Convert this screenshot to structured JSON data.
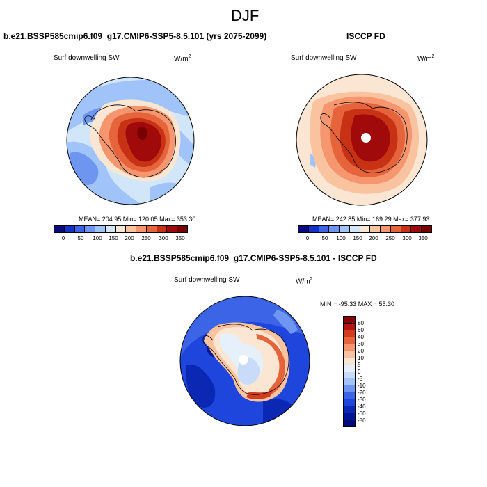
{
  "figure": {
    "title": "DJF"
  },
  "panels": [
    {
      "case_title": "b.e21.BSSP585cmip6.f09_g17.CMIP6-SSP5-8.5.101 (yrs 2075-2099)",
      "variable": "Surf downwelling SW",
      "units_base": "W/m",
      "units_exp": "2",
      "stats": "MEAN= 204.95  Min= 120.05  Max= 353.30",
      "colorbar_ticks": [
        "0",
        "50",
        "100",
        "150",
        "200",
        "250",
        "300",
        "350"
      ]
    },
    {
      "case_title": "ISCCP FD",
      "variable": "Surf downwelling SW",
      "units_base": "W/m",
      "units_exp": "2",
      "stats": "MEAN= 242.85  Min= 169.29  Max= 377.93",
      "colorbar_ticks": [
        "0",
        "50",
        "100",
        "150",
        "200",
        "250",
        "300",
        "350"
      ]
    }
  ],
  "diff_panel": {
    "case_title": "b.e21.BSSP585cmip6.f09_g17.CMIP6-SSP5-8.5.101 - ISCCP FD",
    "variable": "Surf downwelling SW",
    "units_base": "W/m",
    "units_exp": "2",
    "stats": "MIN = -95.33 MAX =  55.30",
    "colorbar_ticks": [
      "80",
      "60",
      "40",
      "30",
      "20",
      "10",
      "5",
      "0",
      "-5",
      "-10",
      "-20",
      "-30",
      "-40",
      "-60",
      "-80"
    ]
  },
  "colors": {
    "abs_scale": [
      "#0a0a78",
      "#1432c8",
      "#3c64e6",
      "#6e96f0",
      "#a0c3fa",
      "#d2e6fa",
      "#fae6d2",
      "#fac3a0",
      "#f5966e",
      "#e6643c",
      "#c83214",
      "#a00a0a",
      "#780000"
    ],
    "diff_scale": [
      "#8b0000",
      "#b41414",
      "#d23c1e",
      "#e6643c",
      "#f5966e",
      "#fac3a0",
      "#fae6d2",
      "#e6f0fa",
      "#c8dcfa",
      "#a0c3fa",
      "#6e96f0",
      "#3c64e6",
      "#1e46dc",
      "#0a28b4",
      "#001496",
      "#000a78"
    ]
  }
}
